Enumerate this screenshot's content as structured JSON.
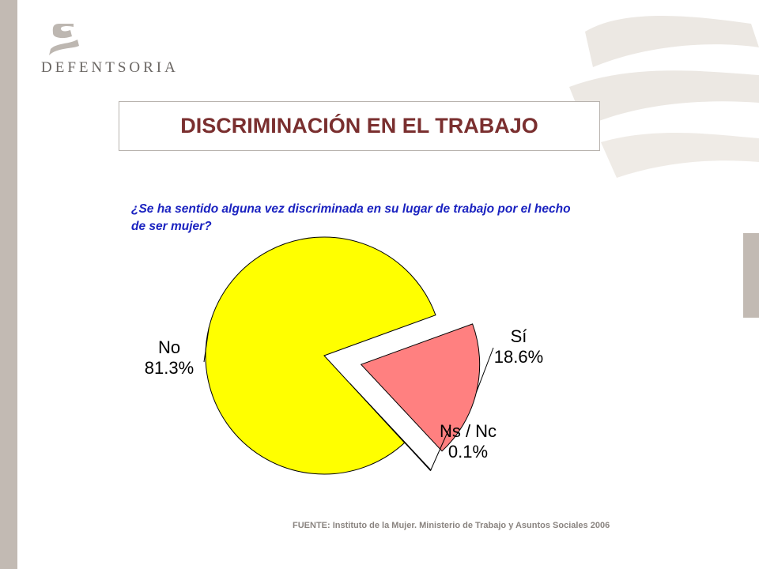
{
  "brand": {
    "logo_text": "DEFENTSORIA"
  },
  "slide": {
    "title": "DISCRIMINACIÓN EN EL TRABAJO",
    "question": "¿Se ha sentido alguna vez discriminada en su lugar de trabajo por el hecho de ser mujer?",
    "source": "FUENTE: Instituto de la Mujer. Ministerio de Trabajo y Asuntos Sociales 2006"
  },
  "chart_data": {
    "type": "pie",
    "title": "¿Se ha sentido alguna vez discriminada en su lugar de trabajo por el hecho de ser mujer?",
    "slices": [
      {
        "label": "Sí",
        "value": 18.6,
        "value_label": "18.6%",
        "color": "#ff8080",
        "exploded": true
      },
      {
        "label": "Ns / Nc",
        "value": 0.1,
        "value_label": "0.1%",
        "color": "#ffffff",
        "exploded": true
      },
      {
        "label": "No",
        "value": 81.3,
        "value_label": "81.3%",
        "color": "#ffff00",
        "exploded": false
      }
    ]
  },
  "colors": {
    "title": "#7a2f2f",
    "question": "#1a22c0",
    "frame": "#c2bab3"
  }
}
